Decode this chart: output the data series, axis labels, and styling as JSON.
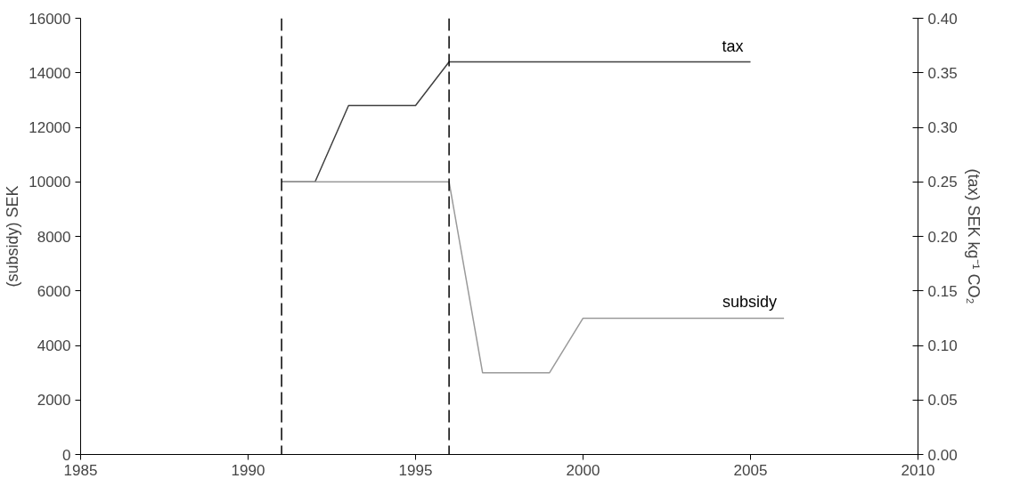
{
  "chart_data": {
    "type": "line",
    "ylabel": "(subsidy) SEK",
    "y2label": "(tax) SEK kg⁻¹ CO₂",
    "xlim": [
      1985,
      2010
    ],
    "xticks": [
      1985,
      1990,
      1995,
      2000,
      2005,
      2010
    ],
    "ylim": [
      0,
      16000
    ],
    "yticks": [
      0,
      2000,
      4000,
      6000,
      8000,
      10000,
      12000,
      14000,
      16000
    ],
    "y2lim": [
      0,
      0.4
    ],
    "y2ticks": [
      {
        "value": 0,
        "label": "0.00"
      },
      {
        "value": 0.05,
        "label": "0.05"
      },
      {
        "value": 0.1,
        "label": "0.10"
      },
      {
        "value": 0.15,
        "label": "0.15"
      },
      {
        "value": 0.2,
        "label": "0.20"
      },
      {
        "value": 0.25,
        "label": "0.25"
      },
      {
        "value": 0.3,
        "label": "0.30"
      },
      {
        "value": 0.35,
        "label": "0.35"
      },
      {
        "value": 0.4,
        "label": "0.40"
      }
    ],
    "series": [
      {
        "name": "tax",
        "color": "#404040",
        "axis": "y2",
        "x": [
          1991,
          1992,
          1993,
          1995,
          1996,
          2005
        ],
        "values": [
          0.25,
          0.25,
          0.32,
          0.32,
          0.36,
          0.36
        ]
      },
      {
        "name": "subsidy",
        "color": "#9a9a9a",
        "x": [
          1991,
          1996,
          1997,
          1999,
          2000,
          2006
        ],
        "values": [
          10000,
          10000,
          3000,
          3000,
          5000,
          5000
        ]
      }
    ],
    "ref_lines": [
      {
        "axis": "x",
        "value": 1991,
        "color": "#000000",
        "line_style": "dashed"
      },
      {
        "axis": "x",
        "value": 1996,
        "color": "#000000",
        "line_style": "dashed"
      }
    ],
    "grid": false
  }
}
